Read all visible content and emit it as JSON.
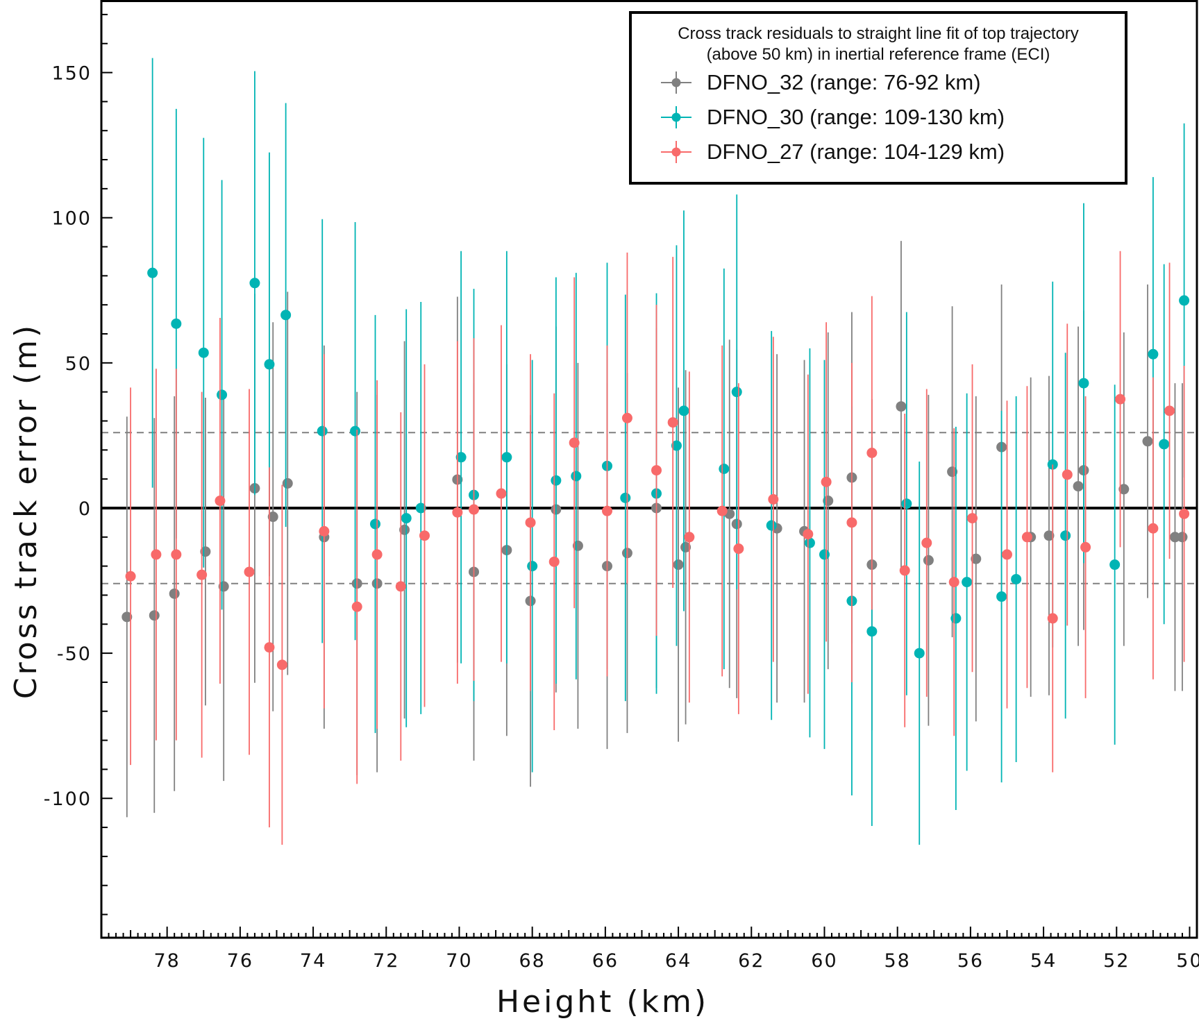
{
  "chart_data": {
    "type": "scatter",
    "xlabel": "Height (km)",
    "ylabel": "Cross track error (m)",
    "xlim": [
      79.8,
      49.8
    ],
    "ylim": [
      -148,
      175
    ],
    "x_ticks": [
      78,
      76,
      74,
      72,
      70,
      68,
      66,
      64,
      62,
      60,
      58,
      56,
      54,
      52,
      50
    ],
    "y_ticks": [
      150,
      100,
      50,
      0,
      -50,
      -100
    ],
    "grid": false,
    "reference_lines": {
      "zero": 0,
      "dashed": [
        26,
        -26
      ]
    },
    "legend": {
      "placement": "top-right",
      "title_lines": [
        "Cross track residuals to straight line fit of top trajectory",
        "(above 50 km) in inertial reference frame (ECI)"
      ]
    },
    "series": [
      {
        "name": "DFNO_32 (range: 76-92 km)",
        "color": "#808080",
        "points": [
          {
            "x": 79.1,
            "y": -37.5,
            "err": 69
          },
          {
            "x": 78.35,
            "y": -37,
            "err": 68
          },
          {
            "x": 77.8,
            "y": -29.5,
            "err": 68
          },
          {
            "x": 76.95,
            "y": -15,
            "err": 53
          },
          {
            "x": 76.45,
            "y": -27,
            "err": 67
          },
          {
            "x": 75.6,
            "y": 6.8,
            "err": 67
          },
          {
            "x": 75.1,
            "y": -3,
            "err": 67
          },
          {
            "x": 74.7,
            "y": 8.5,
            "err": 66
          },
          {
            "x": 73.7,
            "y": -10,
            "err": 66
          },
          {
            "x": 72.8,
            "y": -26,
            "err": 66
          },
          {
            "x": 72.25,
            "y": -26,
            "err": 65
          },
          {
            "x": 71.5,
            "y": -7.5,
            "err": 65
          },
          {
            "x": 70.05,
            "y": 9.8,
            "err": 63
          },
          {
            "x": 69.6,
            "y": -22,
            "err": 65
          },
          {
            "x": 68.7,
            "y": -14.5,
            "err": 64
          },
          {
            "x": 68.05,
            "y": -32,
            "err": 64
          },
          {
            "x": 67.35,
            "y": -0.5,
            "err": 63
          },
          {
            "x": 66.75,
            "y": -13,
            "err": 63
          },
          {
            "x": 65.95,
            "y": -20,
            "err": 63
          },
          {
            "x": 65.4,
            "y": -15.5,
            "err": 62
          },
          {
            "x": 64.6,
            "y": 0,
            "err": 62
          },
          {
            "x": 64.0,
            "y": -19.5,
            "err": 61
          },
          {
            "x": 63.8,
            "y": -13.5,
            "err": 61
          },
          {
            "x": 62.6,
            "y": -2,
            "err": 60
          },
          {
            "x": 62.4,
            "y": -5.5,
            "err": 60
          },
          {
            "x": 61.3,
            "y": -7,
            "err": 60
          },
          {
            "x": 60.55,
            "y": -8,
            "err": 59
          },
          {
            "x": 59.9,
            "y": 2.5,
            "err": 58
          },
          {
            "x": 59.25,
            "y": 10.5,
            "err": 57
          },
          {
            "x": 58.7,
            "y": -19.5,
            "err": 57
          },
          {
            "x": 57.9,
            "y": 35,
            "err": 57
          },
          {
            "x": 57.15,
            "y": -18,
            "err": 57
          },
          {
            "x": 56.5,
            "y": 12.5,
            "err": 57
          },
          {
            "x": 55.85,
            "y": -17.5,
            "err": 56
          },
          {
            "x": 55.15,
            "y": 21,
            "err": 56
          },
          {
            "x": 54.35,
            "y": -10,
            "err": 55
          },
          {
            "x": 53.85,
            "y": -9.5,
            "err": 55
          },
          {
            "x": 53.05,
            "y": 7.5,
            "err": 55
          },
          {
            "x": 52.9,
            "y": 13,
            "err": 55
          },
          {
            "x": 51.8,
            "y": 6.5,
            "err": 54
          },
          {
            "x": 51.15,
            "y": 23,
            "err": 54
          },
          {
            "x": 50.4,
            "y": -10,
            "err": 53
          },
          {
            "x": 50.2,
            "y": -10,
            "err": 53
          }
        ]
      },
      {
        "name": "DFNO_30 (range: 109-130 km)",
        "color": "#00b4b4",
        "points": [
          {
            "x": 78.4,
            "y": 81,
            "err": 74
          },
          {
            "x": 77.75,
            "y": 63.5,
            "err": 74
          },
          {
            "x": 77.0,
            "y": 53.5,
            "err": 74
          },
          {
            "x": 76.5,
            "y": 39,
            "err": 74
          },
          {
            "x": 75.6,
            "y": 77.5,
            "err": 73
          },
          {
            "x": 75.2,
            "y": 49.5,
            "err": 73
          },
          {
            "x": 74.75,
            "y": 66.5,
            "err": 73
          },
          {
            "x": 73.75,
            "y": 26.5,
            "err": 73
          },
          {
            "x": 72.85,
            "y": 26.5,
            "err": 72
          },
          {
            "x": 72.3,
            "y": -5.5,
            "err": 72
          },
          {
            "x": 71.45,
            "y": -3.5,
            "err": 72
          },
          {
            "x": 71.05,
            "y": 0,
            "err": 71
          },
          {
            "x": 69.95,
            "y": 17.5,
            "err": 71
          },
          {
            "x": 69.6,
            "y": 4.5,
            "err": 71
          },
          {
            "x": 68.7,
            "y": 17.5,
            "err": 71
          },
          {
            "x": 68.0,
            "y": -20,
            "err": 71
          },
          {
            "x": 67.35,
            "y": 9.5,
            "err": 70
          },
          {
            "x": 66.8,
            "y": 11,
            "err": 70
          },
          {
            "x": 65.95,
            "y": 14.5,
            "err": 70
          },
          {
            "x": 65.45,
            "y": 3.5,
            "err": 70
          },
          {
            "x": 64.6,
            "y": 5,
            "err": 69
          },
          {
            "x": 64.05,
            "y": 21.5,
            "err": 69
          },
          {
            "x": 63.85,
            "y": 33.5,
            "err": 69
          },
          {
            "x": 62.75,
            "y": 13.5,
            "err": 69
          },
          {
            "x": 62.4,
            "y": 40,
            "err": 68
          },
          {
            "x": 61.45,
            "y": -6,
            "err": 67
          },
          {
            "x": 60.4,
            "y": -12,
            "err": 67
          },
          {
            "x": 60.0,
            "y": -16,
            "err": 67
          },
          {
            "x": 59.25,
            "y": -32,
            "err": 67
          },
          {
            "x": 58.7,
            "y": -42.5,
            "err": 67
          },
          {
            "x": 57.75,
            "y": 1.5,
            "err": 66
          },
          {
            "x": 57.4,
            "y": -50,
            "err": 66
          },
          {
            "x": 56.4,
            "y": -38,
            "err": 66
          },
          {
            "x": 56.1,
            "y": -25.5,
            "err": 65
          },
          {
            "x": 55.15,
            "y": -30.5,
            "err": 64
          },
          {
            "x": 54.75,
            "y": -24.5,
            "err": 63
          },
          {
            "x": 53.75,
            "y": 15,
            "err": 63
          },
          {
            "x": 53.4,
            "y": -9.5,
            "err": 63
          },
          {
            "x": 52.9,
            "y": 43,
            "err": 62
          },
          {
            "x": 52.05,
            "y": -19.5,
            "err": 62
          },
          {
            "x": 51.0,
            "y": 53,
            "err": 61
          },
          {
            "x": 50.7,
            "y": 22,
            "err": 62
          },
          {
            "x": 50.15,
            "y": 71.5,
            "err": 61
          }
        ]
      },
      {
        "name": "DFNO_27 (range: 104-129 km)",
        "color": "#f86a6a",
        "points": [
          {
            "x": 79.0,
            "y": -23.5,
            "err": 65
          },
          {
            "x": 78.3,
            "y": -16,
            "err": 64
          },
          {
            "x": 77.75,
            "y": -16,
            "err": 64
          },
          {
            "x": 77.05,
            "y": -23,
            "err": 63
          },
          {
            "x": 76.55,
            "y": 2.5,
            "err": 63
          },
          {
            "x": 75.75,
            "y": -22,
            "err": 63
          },
          {
            "x": 75.2,
            "y": -48,
            "err": 62
          },
          {
            "x": 74.85,
            "y": -54,
            "err": 62
          },
          {
            "x": 73.7,
            "y": -8,
            "err": 61
          },
          {
            "x": 72.8,
            "y": -34,
            "err": 61
          },
          {
            "x": 72.25,
            "y": -16,
            "err": 60
          },
          {
            "x": 71.6,
            "y": -27,
            "err": 60
          },
          {
            "x": 70.95,
            "y": -9.5,
            "err": 59
          },
          {
            "x": 70.05,
            "y": -1.5,
            "err": 59
          },
          {
            "x": 69.6,
            "y": -0.5,
            "err": 59
          },
          {
            "x": 68.85,
            "y": 5,
            "err": 58
          },
          {
            "x": 68.05,
            "y": -5,
            "err": 58
          },
          {
            "x": 67.4,
            "y": -18.5,
            "err": 58
          },
          {
            "x": 66.85,
            "y": 22.5,
            "err": 57
          },
          {
            "x": 65.95,
            "y": -1,
            "err": 57
          },
          {
            "x": 65.4,
            "y": 31,
            "err": 57
          },
          {
            "x": 64.6,
            "y": 13,
            "err": 57
          },
          {
            "x": 64.15,
            "y": 29.5,
            "err": 57
          },
          {
            "x": 63.7,
            "y": -10,
            "err": 57
          },
          {
            "x": 62.8,
            "y": -1,
            "err": 57
          },
          {
            "x": 62.35,
            "y": -14,
            "err": 57
          },
          {
            "x": 61.4,
            "y": 3,
            "err": 56
          },
          {
            "x": 60.45,
            "y": -9,
            "err": 55
          },
          {
            "x": 59.95,
            "y": 9,
            "err": 55
          },
          {
            "x": 59.25,
            "y": -5,
            "err": 55
          },
          {
            "x": 58.7,
            "y": 19,
            "err": 54
          },
          {
            "x": 57.8,
            "y": -21.5,
            "err": 54
          },
          {
            "x": 57.2,
            "y": -12,
            "err": 53
          },
          {
            "x": 56.45,
            "y": -25.5,
            "err": 53
          },
          {
            "x": 55.95,
            "y": -3.5,
            "err": 53
          },
          {
            "x": 55.0,
            "y": -16,
            "err": 53
          },
          {
            "x": 54.45,
            "y": -10,
            "err": 52
          },
          {
            "x": 53.75,
            "y": -38,
            "err": 53
          },
          {
            "x": 53.35,
            "y": 11.5,
            "err": 52
          },
          {
            "x": 52.85,
            "y": -13.5,
            "err": 52
          },
          {
            "x": 51.9,
            "y": 37.5,
            "err": 51
          },
          {
            "x": 51.0,
            "y": -7,
            "err": 52
          },
          {
            "x": 50.55,
            "y": 33.5,
            "err": 51
          },
          {
            "x": 50.15,
            "y": -2,
            "err": 51
          }
        ]
      }
    ]
  }
}
